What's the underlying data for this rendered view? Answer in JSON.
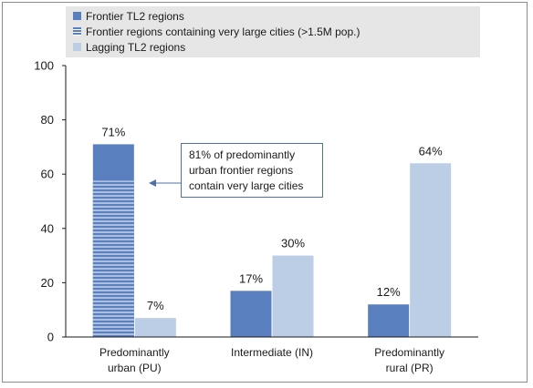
{
  "colors": {
    "frontier": "#5a7fbf",
    "frontier_large_cities_stripe": "#ffffff",
    "lagging": "#bccde6",
    "annotation_border": "#4f6fa8",
    "legend_background": "#e6e6e6",
    "axis": "#1a1a1a"
  },
  "legend": {
    "items": [
      {
        "label": "Frontier TL2 regions",
        "pattern": "solid",
        "color": "#5a7fbf"
      },
      {
        "label": "Frontier regions containing very large cities (>1.5M pop.)",
        "pattern": "striped",
        "color": "#5a7fbf"
      },
      {
        "label": "Lagging TL2 regions",
        "pattern": "solid",
        "color": "#bccde6"
      }
    ]
  },
  "annotation": {
    "lines": [
      "81% of predominantly",
      "urban frontier regions",
      "contain very large cities"
    ]
  },
  "chart_data": {
    "type": "bar",
    "categories": [
      [
        "Predominantly",
        "urban (PU)"
      ],
      [
        "Intermediate (IN)"
      ],
      [
        "Predominantly",
        "rural (PR)"
      ]
    ],
    "series": [
      {
        "name": "Frontier TL2 regions",
        "values": [
          71,
          17,
          12
        ],
        "labels": [
          "71%",
          "17%",
          "12%"
        ]
      },
      {
        "name": "Lagging TL2 regions",
        "values": [
          7,
          30,
          64
        ],
        "labels": [
          "7%",
          "30%",
          "64%"
        ]
      }
    ],
    "overlay": {
      "name": "Frontier regions containing very large cities (>1.5M pop.)",
      "category_index": 0,
      "value": 57.5
    },
    "ylim": [
      0,
      100
    ],
    "yticks": [
      0,
      20,
      40,
      60,
      80,
      100
    ],
    "grid": false,
    "legend_position": "top"
  }
}
